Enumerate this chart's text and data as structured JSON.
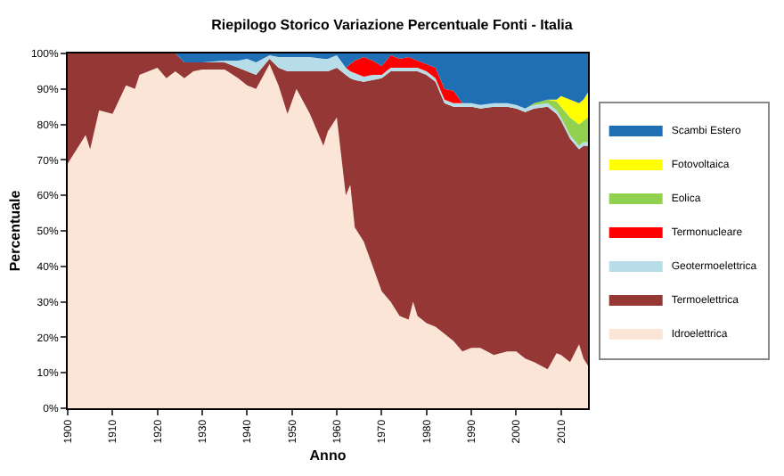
{
  "chart_data": {
    "type": "area",
    "stacked": true,
    "title": "Riepilogo Storico Variazione Percentuale Fonti - Italia",
    "xlabel": "Anno",
    "ylabel": "Percentuale",
    "x": [
      1900,
      1902,
      1904,
      1905,
      1907,
      1910,
      1913,
      1915,
      1916,
      1920,
      1922,
      1924,
      1926,
      1928,
      1930,
      1935,
      1938,
      1940,
      1942,
      1945,
      1947,
      1949,
      1951,
      1954,
      1957,
      1958,
      1960,
      1962,
      1963,
      1964,
      1966,
      1968,
      1970,
      1972,
      1974,
      1976,
      1977,
      1978,
      1980,
      1982,
      1984,
      1986,
      1988,
      1990,
      1992,
      1995,
      1998,
      2000,
      2002,
      2004,
      2007,
      2009,
      2010,
      2012,
      2014,
      2015,
      2016
    ],
    "series": [
      {
        "name": "Idroelettrica",
        "color": "#fbe5d6",
        "values": [
          69,
          73,
          77,
          73,
          84,
          83,
          91,
          90,
          94,
          96,
          93,
          95,
          93,
          95,
          95.5,
          95.5,
          93,
          91,
          90,
          97,
          91,
          83,
          90,
          83,
          74,
          78,
          82,
          60,
          63,
          51,
          47,
          40,
          33,
          30,
          26,
          25,
          30,
          26,
          24,
          23,
          21,
          19,
          16,
          17,
          17,
          15,
          16,
          16,
          14,
          13,
          11,
          15.5,
          15,
          13,
          18,
          14,
          12
        ]
      },
      {
        "name": "Termoelettrica",
        "color": "#953735",
        "values": [
          31,
          27,
          23,
          27,
          16,
          17,
          9,
          10,
          6,
          4,
          7,
          5,
          4.5,
          2.5,
          2,
          2,
          3,
          4,
          4,
          1.5,
          5,
          12,
          5,
          12,
          21,
          17,
          14,
          34,
          30,
          41.5,
          45,
          52.5,
          60,
          65,
          69,
          70,
          65,
          69,
          70,
          69,
          65,
          66,
          69,
          68,
          67.5,
          70,
          69,
          68.5,
          69.5,
          71.5,
          74,
          67.5,
          66,
          63,
          55,
          60,
          62
        ]
      },
      {
        "name": "Geotermoelettrica",
        "color": "#b7dee8",
        "values": [
          null,
          null,
          null,
          null,
          null,
          null,
          null,
          null,
          null,
          null,
          null,
          null,
          null,
          null,
          0,
          0.5,
          2,
          3.5,
          3.5,
          1,
          3,
          4,
          4,
          4,
          3.5,
          3.5,
          3.5,
          2,
          2,
          2,
          1.5,
          1.5,
          1,
          1,
          1,
          1,
          1,
          1,
          1,
          1,
          1,
          1,
          1,
          1,
          1,
          1,
          1,
          1,
          1,
          1,
          1,
          1,
          1,
          1,
          1,
          1,
          1
        ]
      },
      {
        "name": "Termonucleare",
        "color": "#ff0000",
        "values": [
          null,
          null,
          null,
          null,
          null,
          null,
          null,
          null,
          null,
          null,
          null,
          null,
          null,
          null,
          null,
          null,
          null,
          null,
          null,
          null,
          null,
          null,
          null,
          null,
          null,
          null,
          null,
          0,
          2,
          3.5,
          5.5,
          4,
          2.5,
          3.5,
          2.5,
          3,
          2.5,
          2,
          2,
          3,
          3,
          3.5,
          0,
          null,
          null,
          null,
          null,
          null,
          null,
          null,
          null,
          null,
          null,
          null,
          null,
          null,
          null
        ]
      },
      {
        "name": "Eolica",
        "color": "#92d050",
        "values": [
          null,
          null,
          null,
          null,
          null,
          null,
          null,
          null,
          null,
          null,
          null,
          null,
          null,
          null,
          null,
          null,
          null,
          null,
          null,
          null,
          null,
          null,
          null,
          null,
          null,
          null,
          null,
          null,
          null,
          null,
          null,
          null,
          null,
          null,
          null,
          null,
          null,
          null,
          null,
          null,
          null,
          null,
          null,
          null,
          null,
          null,
          null,
          null,
          0,
          0.5,
          1,
          2.5,
          3,
          5,
          6,
          6,
          7
        ]
      },
      {
        "name": "Fotovoltaica",
        "color": "#ffff00",
        "values": [
          null,
          null,
          null,
          null,
          null,
          null,
          null,
          null,
          null,
          null,
          null,
          null,
          null,
          null,
          null,
          null,
          null,
          null,
          null,
          null,
          null,
          null,
          null,
          null,
          null,
          null,
          null,
          null,
          null,
          null,
          null,
          null,
          null,
          null,
          null,
          null,
          null,
          null,
          null,
          null,
          null,
          null,
          null,
          null,
          null,
          null,
          null,
          null,
          null,
          null,
          0,
          0.5,
          3,
          5,
          6,
          6,
          7
        ]
      },
      {
        "name": "Scambi Estero",
        "color": "#1f6fb4",
        "values": [
          null,
          null,
          null,
          null,
          null,
          null,
          null,
          null,
          null,
          null,
          null,
          0,
          2.5,
          2.5,
          2.5,
          2,
          2,
          1.5,
          2.5,
          0.5,
          1,
          1,
          1,
          1,
          1.5,
          1.5,
          0.5,
          4,
          3,
          2,
          1,
          2,
          3.5,
          0.5,
          1.5,
          1,
          1.5,
          2,
          3,
          4,
          10,
          10.5,
          14,
          14,
          14.5,
          14,
          14,
          14.5,
          15.5,
          14,
          13,
          13,
          12,
          13,
          14,
          13,
          11
        ]
      }
    ],
    "xlim": [
      1900,
      2016
    ],
    "xticks": [
      1900,
      1910,
      1920,
      1930,
      1940,
      1950,
      1960,
      1970,
      1980,
      1990,
      2000,
      2010
    ],
    "ylim": [
      0,
      100
    ],
    "yticks": [
      {
        "value": 0,
        "label": "0%"
      },
      {
        "value": 10,
        "label": "10%"
      },
      {
        "value": 20,
        "label": "20%"
      },
      {
        "value": 30,
        "label": "30%"
      },
      {
        "value": 40,
        "label": "40%"
      },
      {
        "value": 50,
        "label": "50%"
      },
      {
        "value": 60,
        "label": "60%"
      },
      {
        "value": 70,
        "label": "70%"
      },
      {
        "value": 80,
        "label": "80%"
      },
      {
        "value": 90,
        "label": "90%"
      },
      {
        "value": 100,
        "label": "100%"
      }
    ],
    "legend": "right",
    "marker": "none"
  }
}
